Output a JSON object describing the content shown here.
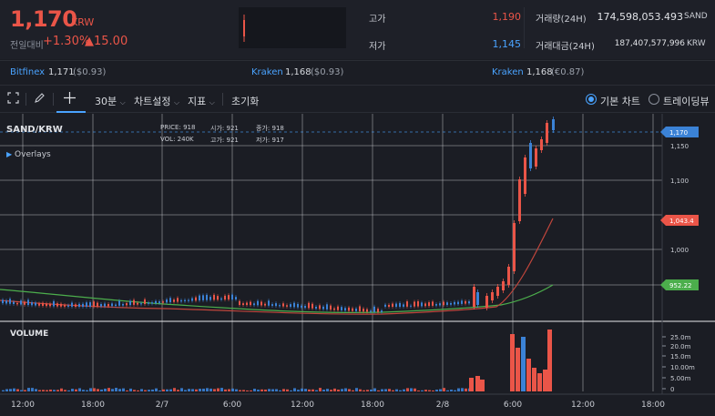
{
  "header": {
    "price": "1,170",
    "currency": "KRW",
    "change_label": "전일대비",
    "change_pct": "+1.30%",
    "change_val": "▲15.00",
    "stats": {
      "high_label": "고가",
      "high": "1,190",
      "low_label": "저가",
      "low": "1,145",
      "volume_label": "거래량(24H)",
      "volume": "174,598,053.493",
      "volume_unit": "SAND",
      "amount_label": "거래대금(24H)",
      "amount": "187,407,577,996",
      "amount_unit": "KRW"
    }
  },
  "exchanges": [
    {
      "name": "Bitfinex",
      "price": "1,171",
      "ref": "($0.93)"
    },
    {
      "name": "Kraken",
      "price": "1,168",
      "ref": "($0.93)"
    },
    {
      "name": "Kraken",
      "price": "1,168",
      "ref": "(€0.87)"
    }
  ],
  "toolbar": {
    "interval": "30분",
    "chart_settings": "차트설정",
    "indicators": "지표",
    "reset": "초기화",
    "basic_chart": "기본 차트",
    "trading_view": "트레이딩뷰"
  },
  "legend": {
    "symbol": "SAND/KRW",
    "price_lbl": "PRICE:",
    "price": "918",
    "open_lbl": "시가:",
    "open": "921",
    "high_lbl": "종가:",
    "high": "918",
    "vol_lbl": "VOL:",
    "vol": "240K",
    "high2_lbl": "고가:",
    "high2": "921",
    "low_lbl": "저가:",
    "low": "917",
    "overlays": "Overlays",
    "volume": "VOLUME"
  },
  "colors": {
    "up": "#ea5548",
    "down": "#3b82d6",
    "accent": "#4aa3ff",
    "ma_short": "#c0463c",
    "ma_long": "#4cae4c"
  },
  "chart_data": {
    "type": "candlestick",
    "price_ticks": [
      "1,150",
      "1,100",
      "1,050",
      "1,000"
    ],
    "volume_ticks": [
      "25.0m",
      "20.0m",
      "15.0m",
      "10.00m",
      "5.00m",
      "0"
    ],
    "time_ticks": [
      "12:00",
      "18:00",
      "2/7",
      "6:00",
      "12:00",
      "18:00",
      "2/8",
      "6:00",
      "12:00",
      "18:00"
    ],
    "price_tags": [
      "1,170",
      "1,043.4",
      "952.22"
    ],
    "recent_closes": [
      930,
      945,
      990,
      1040,
      1100,
      1120,
      1150,
      1140,
      1160,
      1170
    ],
    "ylim": [
      915,
      1175
    ]
  }
}
